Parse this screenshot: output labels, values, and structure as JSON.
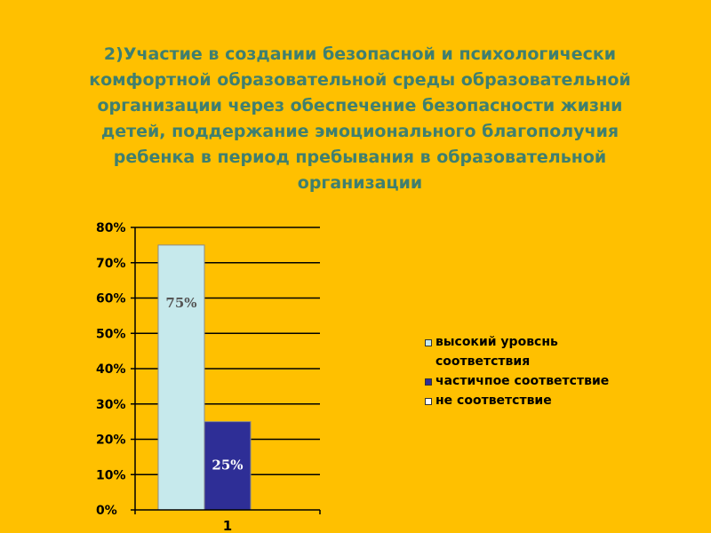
{
  "slide": {
    "title": "2)Участие в создании безопасной и психологически комфортной образовательной среды образовательной организации через обеспечение безопасности жизни детей, поддержание эмоционального благополучия ребенка в период пребывания в образовательной организации"
  },
  "chart_data": {
    "type": "bar",
    "categories": [
      "1"
    ],
    "series": [
      {
        "name": "высокий уровснь соответствия",
        "values": [
          0.75
        ],
        "label": "75%",
        "color": "#C6E9EC",
        "label_color": "#555555"
      },
      {
        "name": "частичпое соответствие",
        "values": [
          0.25
        ],
        "label": "25%",
        "color": "#2E2E96",
        "label_color": "#FFFFFF"
      },
      {
        "name": "не соответствие",
        "values": [
          0
        ],
        "label": "",
        "color": "#FFFFFF",
        "label_color": "#000000"
      }
    ],
    "ylim": [
      0,
      0.8
    ],
    "yticks": [
      "0%",
      "10%",
      "20%",
      "30%",
      "40%",
      "50%",
      "60%",
      "70%",
      "80%"
    ],
    "grid": true,
    "legend_position": "right"
  }
}
